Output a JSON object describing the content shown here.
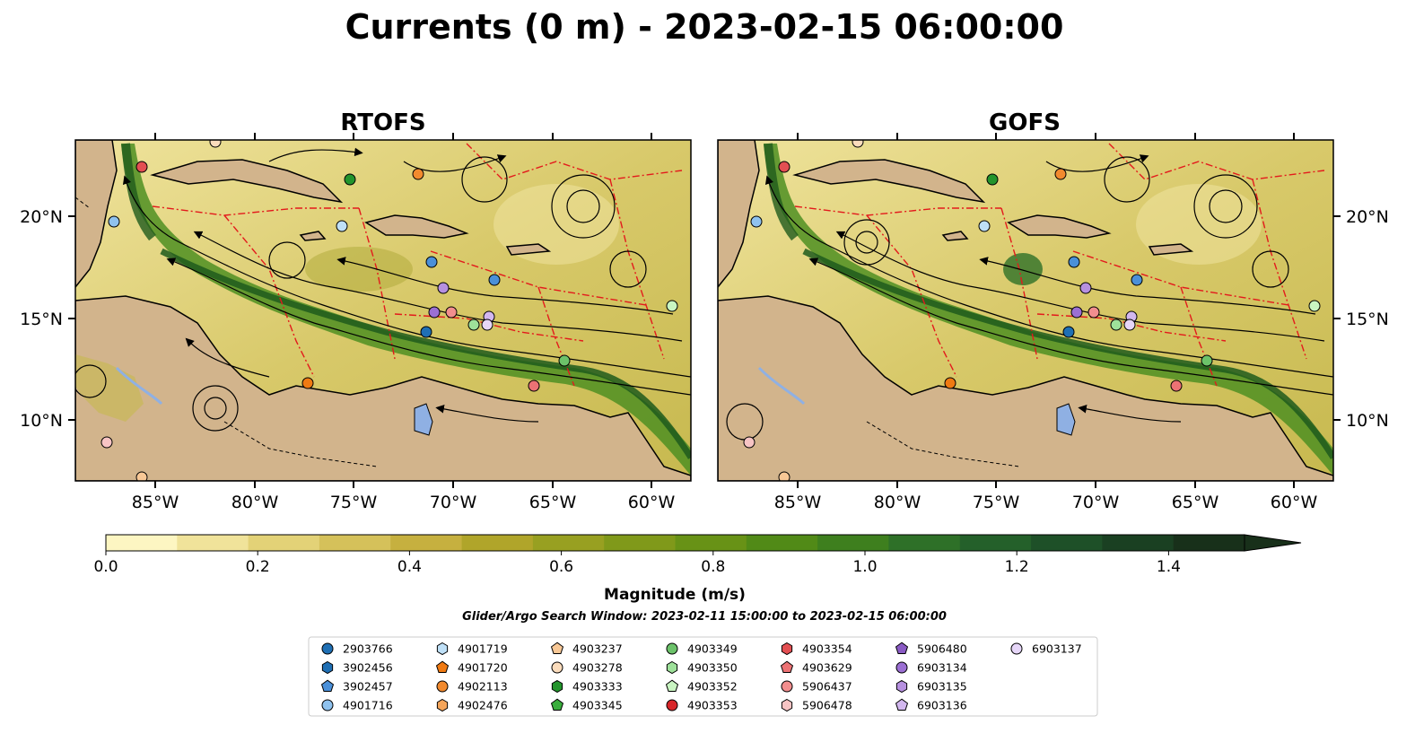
{
  "figure": {
    "title": "Currents (0 m) - 2023-02-15 06:00:00",
    "panels": [
      {
        "id": "rtofs",
        "title": "RTOFS"
      },
      {
        "id": "gofs",
        "title": "GOFS"
      }
    ],
    "lon_ticks": [
      "85°W",
      "80°W",
      "75°W",
      "70°W",
      "65°W",
      "60°W"
    ],
    "lat_ticks": [
      "20°N",
      "15°N",
      "10°N"
    ],
    "colorbar": {
      "label": "Magnitude (m/s)",
      "ticks": [
        "0.0",
        "0.2",
        "0.4",
        "0.6",
        "0.8",
        "1.0",
        "1.2",
        "1.4"
      ],
      "range": [
        0,
        1.5
      ],
      "colors": [
        "#fdf6c2",
        "#f0e39a",
        "#e3d277",
        "#d5c15a",
        "#c6b03f",
        "#b0a52a",
        "#98a021",
        "#80991a",
        "#689216",
        "#518a17",
        "#3e7f1e",
        "#2e7028",
        "#24602a",
        "#1e5028",
        "#1a4022",
        "#18301a"
      ]
    },
    "search_window": "Glider/Argo Search Window: 2023-02-11 15:00:00 to 2023-02-15 06:00:00",
    "legend": [
      {
        "id": "2903766",
        "color": "#1f6fb4",
        "marker": "circle"
      },
      {
        "id": "3902456",
        "color": "#1f6fb4",
        "marker": "hexagon"
      },
      {
        "id": "3902457",
        "color": "#4a90d9",
        "marker": "pentagon"
      },
      {
        "id": "4901716",
        "color": "#8fc2ee",
        "marker": "circle"
      },
      {
        "id": "4901719",
        "color": "#bfe0f7",
        "marker": "hexagon"
      },
      {
        "id": "4901720",
        "color": "#f07a12",
        "marker": "pentagon"
      },
      {
        "id": "4902113",
        "color": "#f28a2e",
        "marker": "circle"
      },
      {
        "id": "4902476",
        "color": "#f5a55a",
        "marker": "hexagon"
      },
      {
        "id": "4903237",
        "color": "#f8c896",
        "marker": "pentagon"
      },
      {
        "id": "4903278",
        "color": "#fbdcbc",
        "marker": "circle"
      },
      {
        "id": "4903333",
        "color": "#23942c",
        "marker": "hexagon"
      },
      {
        "id": "4903345",
        "color": "#39ae3c",
        "marker": "pentagon"
      },
      {
        "id": "4903349",
        "color": "#6cc26a",
        "marker": "circle"
      },
      {
        "id": "4903350",
        "color": "#9ee19a",
        "marker": "hexagon"
      },
      {
        "id": "4903352",
        "color": "#c9f5c2",
        "marker": "pentagon"
      },
      {
        "id": "4903353",
        "color": "#d8262a",
        "marker": "circle"
      },
      {
        "id": "4903354",
        "color": "#e34f52",
        "marker": "hexagon"
      },
      {
        "id": "4903629",
        "color": "#ec7274",
        "marker": "pentagon"
      },
      {
        "id": "5906437",
        "color": "#f28e8e",
        "marker": "circle"
      },
      {
        "id": "5906478",
        "color": "#f7c4c4",
        "marker": "hexagon"
      },
      {
        "id": "5906480",
        "color": "#8a5bc4",
        "marker": "pentagon"
      },
      {
        "id": "6903134",
        "color": "#9b6fd3",
        "marker": "circle"
      },
      {
        "id": "6903135",
        "color": "#b690e0",
        "marker": "hexagon"
      },
      {
        "id": "6903136",
        "color": "#d2b7ef",
        "marker": "pentagon"
      },
      {
        "id": "6903137",
        "color": "#e6d6f8",
        "marker": "circle"
      }
    ]
  }
}
